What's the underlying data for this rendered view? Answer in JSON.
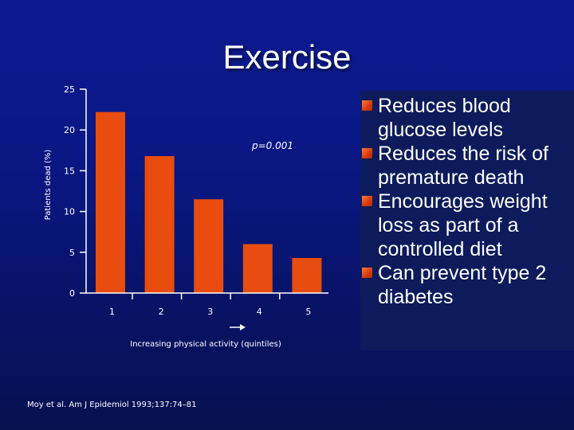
{
  "slide": {
    "title": "Exercise",
    "citation": "Moy et al. Am J Epidemiol 1993;137:74–81"
  },
  "bullets": [
    "Reduces blood glucose levels",
    "Reduces the risk of premature death",
    "Encourages weight loss as part of a controlled diet",
    "Can prevent type 2 diabetes"
  ],
  "colors": {
    "bar": "#e84c0e",
    "axis": "#ffffff",
    "bullet": "#e04a12"
  },
  "chart_data": {
    "type": "bar",
    "categories": [
      "1",
      "2",
      "3",
      "4",
      "5"
    ],
    "values": [
      22.2,
      16.8,
      11.5,
      6.0,
      4.3
    ],
    "xlabel": "Increasing physical activity (quintiles)",
    "ylabel": "Patients dead (%)",
    "ylim": [
      0,
      25
    ],
    "yticks": [
      0,
      5,
      10,
      15,
      20,
      25
    ],
    "annotation": "p=0.001",
    "grid": false,
    "legend": "none"
  }
}
